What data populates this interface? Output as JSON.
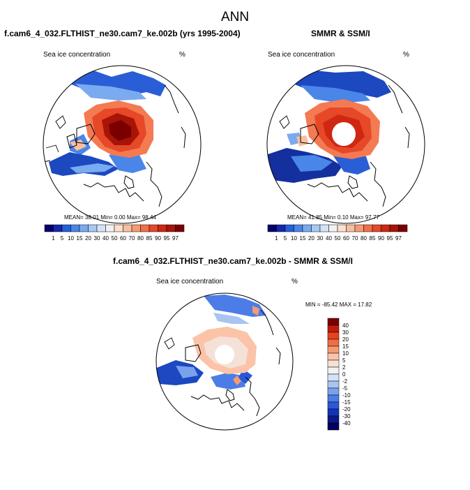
{
  "main_title": "ANN",
  "palette": {
    "seq": [
      "#08006b",
      "#1428ae",
      "#2460d8",
      "#4a86e8",
      "#7aaaf0",
      "#a8c8f4",
      "#d2e2f8",
      "#f1f1f1",
      "#fde0cc",
      "#fbbfa0",
      "#f79a72",
      "#f0704a",
      "#e64828",
      "#cf2712",
      "#a81408",
      "#7a0000"
    ],
    "div": [
      "#7a0000",
      "#c41a0a",
      "#e8421f",
      "#f06e44",
      "#f59a74",
      "#fbc3a8",
      "#f4e2d8",
      "#f2f2f2",
      "#d4e2f8",
      "#a8c4f2",
      "#7aa2ec",
      "#4c7de6",
      "#2a58d8",
      "#1432b8",
      "#0a1a8a",
      "#040060"
    ]
  },
  "panels": [
    {
      "title": "f.cam6_4_032.FLTHIST_ne30.cam7_ke.002b (yrs 1995-2004)",
      "var_label": "Sea ice concentration",
      "unit": "%",
      "stats_text": "MEAN=  38.01  Min=   0.00  Max=  98.44"
    },
    {
      "title": "SMMR & SSM/I",
      "var_label": "Sea ice concentration",
      "unit": "%",
      "stats_text": "MEAN=  41.85  Min=   0.10  Max=  97.77"
    },
    {
      "title": "f.cam6_4_032.FLTHIST_ne30.cam7_ke.002b - SMMR & SSM/I",
      "var_label": "Sea ice concentration",
      "unit": "%",
      "stats_text": "MIN = -85.42 MAX =  17.82"
    }
  ],
  "seq_colorbar_labels": [
    "1",
    "5",
    "10",
    "15",
    "20",
    "30",
    "40",
    "50",
    "60",
    "70",
    "80",
    "85",
    "90",
    "95",
    "97"
  ],
  "diff_colorbar_labels": [
    "40",
    "30",
    "20",
    "15",
    "10",
    "5",
    "2",
    "0",
    "-2",
    "-5",
    "-10",
    "-15",
    "-20",
    "-30",
    "-40"
  ]
}
